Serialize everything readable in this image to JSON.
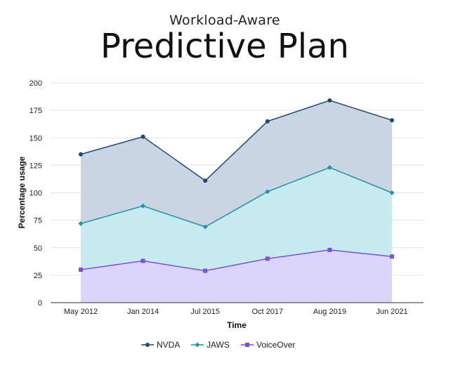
{
  "header": {
    "subtitle": "Workload-Aware",
    "title": "Predictive Plan"
  },
  "chart_data": {
    "type": "area",
    "categories": [
      "May 2012",
      "Jan 2014",
      "Jul 2015",
      "Oct 2017",
      "Aug 2019",
      "Jun 2021"
    ],
    "xlabel": "Time",
    "ylabel": "Percentage usage",
    "ylim": [
      0,
      200
    ],
    "yticks": [
      0,
      25,
      50,
      75,
      100,
      125,
      150,
      175,
      200
    ],
    "grid": true,
    "legend": "bottom",
    "series": [
      {
        "name": "NVDA",
        "values": [
          135,
          151,
          111,
          165,
          184,
          166
        ],
        "color": "#1b4a7a",
        "fill": "#c9d5e2",
        "marker": "circle"
      },
      {
        "name": "JAWS",
        "values": [
          72,
          88,
          69,
          101,
          123,
          100
        ],
        "color": "#1a96a8",
        "fill": "#c8e9ee",
        "marker": "diamond"
      },
      {
        "name": "VoiceOver",
        "values": [
          30,
          38,
          29,
          40,
          48,
          42
        ],
        "color": "#7a4fe0",
        "fill": "#ddd4fa",
        "marker": "square"
      }
    ]
  }
}
